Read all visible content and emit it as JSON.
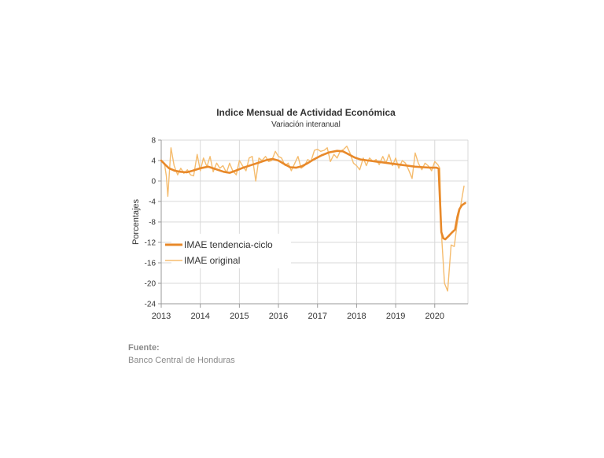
{
  "chart_data": {
    "type": "line",
    "title": "Indice Mensual de  Actividad Económica",
    "subtitle": "Variación interanual",
    "ylabel": "Porcentajes",
    "xlabel": "",
    "ylim": [
      -24,
      8
    ],
    "yticks": [
      8,
      4,
      0,
      -4,
      -8,
      -12,
      -16,
      -20,
      -24
    ],
    "xlim": [
      2013,
      2020.85
    ],
    "year_labels": [
      "2013",
      "2014",
      "2015",
      "2016",
      "2017",
      "2018",
      "2019",
      "2020"
    ],
    "grid": true,
    "legend_position": "lower-left",
    "series": [
      {
        "name": "IMAE tendencia-ciclo",
        "color": "#E8892A",
        "points": [
          [
            2013.0,
            4.0
          ],
          [
            2013.1,
            3.2
          ],
          [
            2013.2,
            2.5
          ],
          [
            2013.35,
            2.0
          ],
          [
            2013.5,
            1.8
          ],
          [
            2013.65,
            1.7
          ],
          [
            2013.8,
            2.0
          ],
          [
            2014.0,
            2.5
          ],
          [
            2014.2,
            2.8
          ],
          [
            2014.4,
            2.3
          ],
          [
            2014.6,
            1.8
          ],
          [
            2014.75,
            1.6
          ],
          [
            2014.9,
            2.0
          ],
          [
            2015.1,
            2.6
          ],
          [
            2015.3,
            3.1
          ],
          [
            2015.5,
            3.6
          ],
          [
            2015.7,
            4.1
          ],
          [
            2015.85,
            4.3
          ],
          [
            2016.0,
            4.0
          ],
          [
            2016.15,
            3.3
          ],
          [
            2016.3,
            2.7
          ],
          [
            2016.45,
            2.6
          ],
          [
            2016.6,
            2.9
          ],
          [
            2016.75,
            3.5
          ],
          [
            2016.9,
            4.2
          ],
          [
            2017.1,
            5.0
          ],
          [
            2017.3,
            5.6
          ],
          [
            2017.5,
            5.9
          ],
          [
            2017.65,
            5.8
          ],
          [
            2017.8,
            5.2
          ],
          [
            2017.95,
            4.6
          ],
          [
            2018.1,
            4.2
          ],
          [
            2018.3,
            4.0
          ],
          [
            2018.5,
            3.8
          ],
          [
            2018.7,
            3.6
          ],
          [
            2018.9,
            3.4
          ],
          [
            2019.1,
            3.2
          ],
          [
            2019.3,
            3.0
          ],
          [
            2019.5,
            2.8
          ],
          [
            2019.7,
            2.7
          ],
          [
            2019.9,
            2.6
          ],
          [
            2020.05,
            2.6
          ],
          [
            2020.1,
            2.4
          ],
          [
            2020.13,
            -3.0
          ],
          [
            2020.17,
            -10.0
          ],
          [
            2020.22,
            -11.2
          ],
          [
            2020.27,
            -11.4
          ],
          [
            2020.35,
            -10.8
          ],
          [
            2020.45,
            -10.0
          ],
          [
            2020.52,
            -9.5
          ],
          [
            2020.58,
            -7.0
          ],
          [
            2020.63,
            -5.5
          ],
          [
            2020.7,
            -4.7
          ],
          [
            2020.78,
            -4.3
          ]
        ]
      },
      {
        "name": "IMAE original",
        "color": "#F5BC6E",
        "points": [
          [
            2013.0,
            4.0
          ],
          [
            2013.08,
            3.5
          ],
          [
            2013.13,
            1.0
          ],
          [
            2013.17,
            -3.0
          ],
          [
            2013.25,
            6.5
          ],
          [
            2013.33,
            3.0
          ],
          [
            2013.42,
            1.2
          ],
          [
            2013.5,
            2.5
          ],
          [
            2013.58,
            1.5
          ],
          [
            2013.67,
            2.2
          ],
          [
            2013.75,
            1.2
          ],
          [
            2013.83,
            1.0
          ],
          [
            2013.92,
            5.2
          ],
          [
            2014.0,
            2.0
          ],
          [
            2014.08,
            4.5
          ],
          [
            2014.17,
            2.8
          ],
          [
            2014.25,
            4.8
          ],
          [
            2014.33,
            1.8
          ],
          [
            2014.42,
            3.5
          ],
          [
            2014.5,
            2.5
          ],
          [
            2014.58,
            3.0
          ],
          [
            2014.67,
            1.6
          ],
          [
            2014.75,
            3.5
          ],
          [
            2014.83,
            2.0
          ],
          [
            2014.92,
            1.2
          ],
          [
            2015.0,
            4.0
          ],
          [
            2015.08,
            3.0
          ],
          [
            2015.17,
            2.0
          ],
          [
            2015.25,
            4.5
          ],
          [
            2015.33,
            4.8
          ],
          [
            2015.42,
            0.0
          ],
          [
            2015.5,
            4.5
          ],
          [
            2015.58,
            4.0
          ],
          [
            2015.67,
            4.8
          ],
          [
            2015.75,
            3.8
          ],
          [
            2015.83,
            4.0
          ],
          [
            2015.92,
            5.8
          ],
          [
            2016.0,
            4.8
          ],
          [
            2016.08,
            4.5
          ],
          [
            2016.17,
            3.0
          ],
          [
            2016.25,
            3.5
          ],
          [
            2016.33,
            2.0
          ],
          [
            2016.42,
            3.5
          ],
          [
            2016.5,
            4.8
          ],
          [
            2016.58,
            2.5
          ],
          [
            2016.67,
            3.0
          ],
          [
            2016.75,
            4.2
          ],
          [
            2016.83,
            3.8
          ],
          [
            2016.92,
            6.0
          ],
          [
            2017.0,
            6.2
          ],
          [
            2017.08,
            5.8
          ],
          [
            2017.17,
            6.0
          ],
          [
            2017.25,
            6.5
          ],
          [
            2017.33,
            3.8
          ],
          [
            2017.42,
            5.2
          ],
          [
            2017.5,
            4.5
          ],
          [
            2017.58,
            5.8
          ],
          [
            2017.67,
            6.2
          ],
          [
            2017.75,
            6.8
          ],
          [
            2017.83,
            5.5
          ],
          [
            2017.92,
            3.5
          ],
          [
            2018.0,
            3.0
          ],
          [
            2018.08,
            2.2
          ],
          [
            2018.17,
            4.5
          ],
          [
            2018.25,
            3.0
          ],
          [
            2018.33,
            4.5
          ],
          [
            2018.42,
            3.8
          ],
          [
            2018.5,
            4.2
          ],
          [
            2018.58,
            3.2
          ],
          [
            2018.67,
            4.8
          ],
          [
            2018.75,
            3.5
          ],
          [
            2018.83,
            5.2
          ],
          [
            2018.92,
            3.0
          ],
          [
            2019.0,
            4.5
          ],
          [
            2019.08,
            2.5
          ],
          [
            2019.17,
            4.0
          ],
          [
            2019.25,
            3.5
          ],
          [
            2019.33,
            2.2
          ],
          [
            2019.42,
            0.5
          ],
          [
            2019.5,
            5.5
          ],
          [
            2019.58,
            3.5
          ],
          [
            2019.67,
            2.2
          ],
          [
            2019.75,
            3.5
          ],
          [
            2019.83,
            3.0
          ],
          [
            2019.92,
            2.0
          ],
          [
            2020.0,
            3.8
          ],
          [
            2020.08,
            3.2
          ],
          [
            2020.13,
            2.5
          ],
          [
            2020.17,
            -10.0
          ],
          [
            2020.25,
            -20.0
          ],
          [
            2020.33,
            -21.5
          ],
          [
            2020.42,
            -12.5
          ],
          [
            2020.5,
            -12.8
          ],
          [
            2020.58,
            -8.0
          ],
          [
            2020.67,
            -4.5
          ],
          [
            2020.75,
            -1.0
          ]
        ]
      }
    ]
  },
  "source": {
    "label": "Fuente:",
    "text": "Banco Central de Honduras"
  }
}
